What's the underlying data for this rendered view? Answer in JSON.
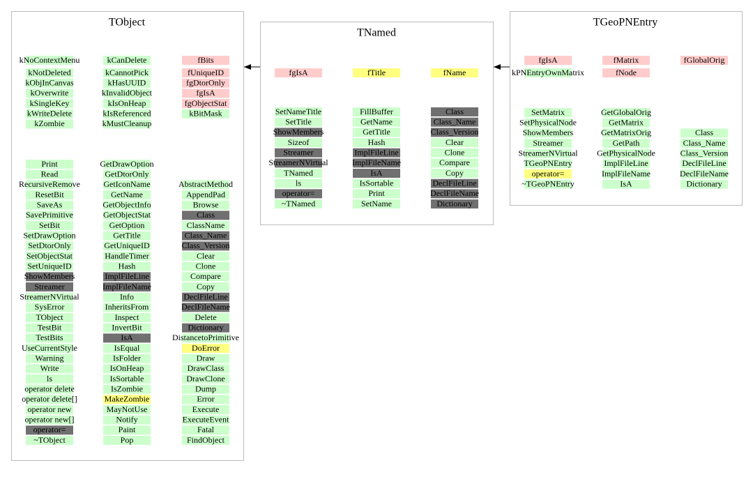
{
  "classes": [
    {
      "title": "TObject",
      "sections": [
        {
          "columns": [
            [
              {
                "text": "kNoContextMenu",
                "color": "#ccffcc"
              },
              {
                "text": "kNotDeleted",
                "color": "#ccffcc"
              },
              {
                "text": "kObjInCanvas",
                "color": "#ccffcc"
              },
              {
                "text": "kOverwrite",
                "color": "#ccffcc"
              },
              {
                "text": "kSingleKey",
                "color": "#ccffcc"
              },
              {
                "text": "kWriteDelete",
                "color": "#ccffcc"
              },
              {
                "text": "kZombie",
                "color": "#ccffcc"
              }
            ],
            [
              {
                "text": "kCanDelete",
                "color": "#ccffcc"
              },
              {
                "text": "kCannotPick",
                "color": "#ccffcc"
              },
              {
                "text": "kHasUUID",
                "color": "#ccffcc"
              },
              {
                "text": "kInvalidObject",
                "color": "#ccffcc"
              },
              {
                "text": "kIsOnHeap",
                "color": "#ccffcc"
              },
              {
                "text": "kIsReferenced",
                "color": "#ccffcc"
              },
              {
                "text": "kMustCleanup",
                "color": "#ccffcc"
              }
            ],
            [
              {
                "text": "fBits",
                "color": "#ffcccc"
              },
              {
                "text": "fUniqueID",
                "color": "#ffcccc"
              },
              {
                "text": "fgDtorOnly",
                "color": "#ffcccc"
              },
              {
                "text": "fgIsA",
                "color": "#ffcccc"
              },
              {
                "text": "fgObjectStat",
                "color": "#ffcccc"
              },
              {
                "text": "kBitMask",
                "color": "#ccffcc"
              }
            ]
          ]
        },
        {
          "columns": [
            [
              {
                "text": "Print",
                "color": "#ccffcc"
              },
              {
                "text": "Read",
                "color": "#ccffcc"
              },
              {
                "text": "RecursiveRemove",
                "color": "#ccffcc"
              },
              {
                "text": "ResetBit",
                "color": "#ccffcc"
              },
              {
                "text": "SaveAs",
                "color": "#ccffcc"
              },
              {
                "text": "SavePrimitive",
                "color": "#ccffcc"
              },
              {
                "text": "SetBit",
                "color": "#ccffcc"
              },
              {
                "text": "SetDrawOption",
                "color": "#ccffcc"
              },
              {
                "text": "SetDtorOnly",
                "color": "#ccffcc"
              },
              {
                "text": "SetObjectStat",
                "color": "#ccffcc"
              },
              {
                "text": "SetUniqueID",
                "color": "#ccffcc"
              },
              {
                "text": "ShowMembers",
                "color": "#707070"
              },
              {
                "text": "Streamer",
                "color": "#707070"
              },
              {
                "text": "StreamerNVirtual",
                "color": "#ccffcc"
              },
              {
                "text": "SysError",
                "color": "#ccffcc"
              },
              {
                "text": "TObject",
                "color": "#ccffcc"
              },
              {
                "text": "TestBit",
                "color": "#ccffcc"
              },
              {
                "text": "TestBits",
                "color": "#ccffcc"
              },
              {
                "text": "UseCurrentStyle",
                "color": "#ccffcc"
              },
              {
                "text": "Warning",
                "color": "#ccffcc"
              },
              {
                "text": "Write",
                "color": "#ccffcc"
              },
              {
                "text": "ls",
                "color": "#ccffcc"
              },
              {
                "text": "operator delete",
                "color": "#ccffcc"
              },
              {
                "text": "operator delete[]",
                "color": "#ccffcc"
              },
              {
                "text": "operator new",
                "color": "#ccffcc"
              },
              {
                "text": "operator new[]",
                "color": "#ccffcc"
              },
              {
                "text": "operator=",
                "color": "#707070"
              },
              {
                "text": "~TObject",
                "color": "#ccffcc"
              }
            ],
            [
              {
                "text": "GetDrawOption",
                "color": "#ccffcc"
              },
              {
                "text": "GetDtorOnly",
                "color": "#ccffcc"
              },
              {
                "text": "GetIconName",
                "color": "#ccffcc"
              },
              {
                "text": "GetName",
                "color": "#ccffcc"
              },
              {
                "text": "GetObjectInfo",
                "color": "#ccffcc"
              },
              {
                "text": "GetObjectStat",
                "color": "#ccffcc"
              },
              {
                "text": "GetOption",
                "color": "#ccffcc"
              },
              {
                "text": "GetTitle",
                "color": "#ccffcc"
              },
              {
                "text": "GetUniqueID",
                "color": "#ccffcc"
              },
              {
                "text": "HandleTimer",
                "color": "#ccffcc"
              },
              {
                "text": "Hash",
                "color": "#ccffcc"
              },
              {
                "text": "ImplFileLine",
                "color": "#707070"
              },
              {
                "text": "ImplFileName",
                "color": "#707070"
              },
              {
                "text": "Info",
                "color": "#ccffcc"
              },
              {
                "text": "InheritsFrom",
                "color": "#ccffcc"
              },
              {
                "text": "Inspect",
                "color": "#ccffcc"
              },
              {
                "text": "InvertBit",
                "color": "#ccffcc"
              },
              {
                "text": "IsA",
                "color": "#707070"
              },
              {
                "text": "IsEqual",
                "color": "#ccffcc"
              },
              {
                "text": "IsFolder",
                "color": "#ccffcc"
              },
              {
                "text": "IsOnHeap",
                "color": "#ccffcc"
              },
              {
                "text": "IsSortable",
                "color": "#ccffcc"
              },
              {
                "text": "IsZombie",
                "color": "#ccffcc"
              },
              {
                "text": "MakeZombie",
                "color": "#ffff80"
              },
              {
                "text": "MayNotUse",
                "color": "#ccffcc"
              },
              {
                "text": "Notify",
                "color": "#ccffcc"
              },
              {
                "text": "Paint",
                "color": "#ccffcc"
              },
              {
                "text": "Pop",
                "color": "#ccffcc"
              }
            ],
            [
              {
                "text": "AbstractMethod",
                "color": "#ccffcc"
              },
              {
                "text": "AppendPad",
                "color": "#ccffcc"
              },
              {
                "text": "Browse",
                "color": "#ccffcc"
              },
              {
                "text": "Class",
                "color": "#707070"
              },
              {
                "text": "ClassName",
                "color": "#ccffcc"
              },
              {
                "text": "Class_Name",
                "color": "#707070"
              },
              {
                "text": "Class_Version",
                "color": "#707070"
              },
              {
                "text": "Clear",
                "color": "#ccffcc"
              },
              {
                "text": "Clone",
                "color": "#ccffcc"
              },
              {
                "text": "Compare",
                "color": "#ccffcc"
              },
              {
                "text": "Copy",
                "color": "#ccffcc"
              },
              {
                "text": "DeclFileLine",
                "color": "#707070"
              },
              {
                "text": "DeclFileName",
                "color": "#707070"
              },
              {
                "text": "Delete",
                "color": "#ccffcc"
              },
              {
                "text": "Dictionary",
                "color": "#707070"
              },
              {
                "text": "DistancetoPrimitive",
                "color": "#ccffcc"
              },
              {
                "text": "DoError",
                "color": "#ffff80"
              },
              {
                "text": "Draw",
                "color": "#ccffcc"
              },
              {
                "text": "DrawClass",
                "color": "#ccffcc"
              },
              {
                "text": "DrawClone",
                "color": "#ccffcc"
              },
              {
                "text": "Dump",
                "color": "#ccffcc"
              },
              {
                "text": "Error",
                "color": "#ccffcc"
              },
              {
                "text": "Execute",
                "color": "#ccffcc"
              },
              {
                "text": "ExecuteEvent",
                "color": "#ccffcc"
              },
              {
                "text": "Fatal",
                "color": "#ccffcc"
              },
              {
                "text": "FindObject",
                "color": "#ccffcc"
              }
            ]
          ]
        }
      ]
    },
    {
      "title": "TNamed",
      "sections": [
        {
          "columns": [
            [
              {
                "text": "fgIsA",
                "color": "#ffcccc"
              }
            ],
            [
              {
                "text": "fTitle",
                "color": "#ffff80"
              }
            ],
            [
              {
                "text": "fName",
                "color": "#ffff80"
              }
            ]
          ]
        },
        {
          "columns": [
            [
              {
                "text": "SetNameTitle",
                "color": "#ccffcc"
              },
              {
                "text": "SetTitle",
                "color": "#ccffcc"
              },
              {
                "text": "ShowMembers",
                "color": "#707070"
              },
              {
                "text": "Sizeof",
                "color": "#ccffcc"
              },
              {
                "text": "Streamer",
                "color": "#707070"
              },
              {
                "text": "StreamerNVirtual",
                "color": "#707070"
              },
              {
                "text": "TNamed",
                "color": "#ccffcc"
              },
              {
                "text": "ls",
                "color": "#ccffcc"
              },
              {
                "text": "operator=",
                "color": "#707070"
              },
              {
                "text": "~TNamed",
                "color": "#ccffcc"
              }
            ],
            [
              {
                "text": "FillBuffer",
                "color": "#ccffcc"
              },
              {
                "text": "GetName",
                "color": "#ccffcc"
              },
              {
                "text": "GetTitle",
                "color": "#ccffcc"
              },
              {
                "text": "Hash",
                "color": "#ccffcc"
              },
              {
                "text": "ImplFileLine",
                "color": "#707070"
              },
              {
                "text": "ImplFileName",
                "color": "#707070"
              },
              {
                "text": "IsA",
                "color": "#707070"
              },
              {
                "text": "IsSortable",
                "color": "#ccffcc"
              },
              {
                "text": "Print",
                "color": "#ccffcc"
              },
              {
                "text": "SetName",
                "color": "#ccffcc"
              }
            ],
            [
              {
                "text": "Class",
                "color": "#707070"
              },
              {
                "text": "Class_Name",
                "color": "#707070"
              },
              {
                "text": "Class_Version",
                "color": "#707070"
              },
              {
                "text": "Clear",
                "color": "#ccffcc"
              },
              {
                "text": "Clone",
                "color": "#ccffcc"
              },
              {
                "text": "Compare",
                "color": "#ccffcc"
              },
              {
                "text": "Copy",
                "color": "#ccffcc"
              },
              {
                "text": "DeclFileLine",
                "color": "#707070"
              },
              {
                "text": "DeclFileName",
                "color": "#707070"
              },
              {
                "text": "Dictionary",
                "color": "#707070"
              }
            ]
          ]
        }
      ]
    },
    {
      "title": "TGeoPNEntry",
      "sections": [
        {
          "columns": [
            [
              {
                "text": "fgIsA",
                "color": "#ffcccc"
              },
              {
                "text": "kPNEntryOwnMatrix",
                "color": "#ccffcc"
              }
            ],
            [
              {
                "text": "fMatrix",
                "color": "#ffcccc"
              },
              {
                "text": "fNode",
                "color": "#ffcccc"
              }
            ],
            [
              {
                "text": "fGlobalOrig",
                "color": "#ffcccc"
              }
            ]
          ]
        },
        {
          "columns": [
            [
              {
                "text": "SetMatrix",
                "color": "#ccffcc"
              },
              {
                "text": "SetPhysicalNode",
                "color": "#ccffcc"
              },
              {
                "text": "ShowMembers",
                "color": "#ccffcc"
              },
              {
                "text": "Streamer",
                "color": "#ccffcc"
              },
              {
                "text": "StreamerNVirtual",
                "color": "#ccffcc"
              },
              {
                "text": "TGeoPNEntry",
                "color": "#ccffcc"
              },
              {
                "text": "operator=",
                "color": "#ffff80"
              },
              {
                "text": "~TGeoPNEntry",
                "color": "#ccffcc"
              }
            ],
            [
              {
                "text": "GetGlobalOrig",
                "color": "#ccffcc"
              },
              {
                "text": "GetMatrix",
                "color": "#ccffcc"
              },
              {
                "text": "GetMatrixOrig",
                "color": "#ccffcc"
              },
              {
                "text": "GetPath",
                "color": "#ccffcc"
              },
              {
                "text": "GetPhysicalNode",
                "color": "#ccffcc"
              },
              {
                "text": "ImplFileLine",
                "color": "#ccffcc"
              },
              {
                "text": "ImplFileName",
                "color": "#ccffcc"
              },
              {
                "text": "IsA",
                "color": "#ccffcc"
              }
            ],
            [
              {
                "text": "Class",
                "color": "#ccffcc"
              },
              {
                "text": "Class_Name",
                "color": "#ccffcc"
              },
              {
                "text": "Class_Version",
                "color": "#ccffcc"
              },
              {
                "text": "DeclFileLine",
                "color": "#ccffcc"
              },
              {
                "text": "DeclFileName",
                "color": "#ccffcc"
              },
              {
                "text": "Dictionary",
                "color": "#ccffcc"
              }
            ]
          ]
        }
      ]
    }
  ]
}
